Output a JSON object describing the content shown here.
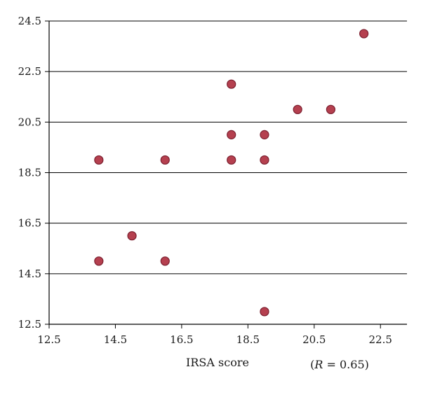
{
  "chart_data": {
    "type": "scatter",
    "xlabel": "IRSA score",
    "ylabel": "",
    "annotation": {
      "prefix": "(",
      "variable": "R",
      "suffix": " = 0.65)"
    },
    "xlim": [
      12.5,
      23.3
    ],
    "ylim": [
      12.5,
      24.5
    ],
    "x_ticks": [
      "12.5",
      "14.5",
      "16.5",
      "18.5",
      "20.5",
      "22.5"
    ],
    "y_ticks": [
      "12.5",
      "14.5",
      "16.5",
      "18.5",
      "20.5",
      "22.5",
      "24.5"
    ],
    "grid": "horizontal",
    "marker_color": "#b5404f",
    "marker_edge_color": "#7a1e2e",
    "points": [
      {
        "x": 14,
        "y": 19
      },
      {
        "x": 14,
        "y": 15
      },
      {
        "x": 15,
        "y": 16
      },
      {
        "x": 16,
        "y": 19
      },
      {
        "x": 16,
        "y": 15
      },
      {
        "x": 18,
        "y": 22
      },
      {
        "x": 18,
        "y": 20
      },
      {
        "x": 18,
        "y": 19
      },
      {
        "x": 19,
        "y": 20
      },
      {
        "x": 19,
        "y": 19
      },
      {
        "x": 19,
        "y": 13
      },
      {
        "x": 20,
        "y": 21
      },
      {
        "x": 21,
        "y": 21
      },
      {
        "x": 22,
        "y": 24
      }
    ]
  }
}
